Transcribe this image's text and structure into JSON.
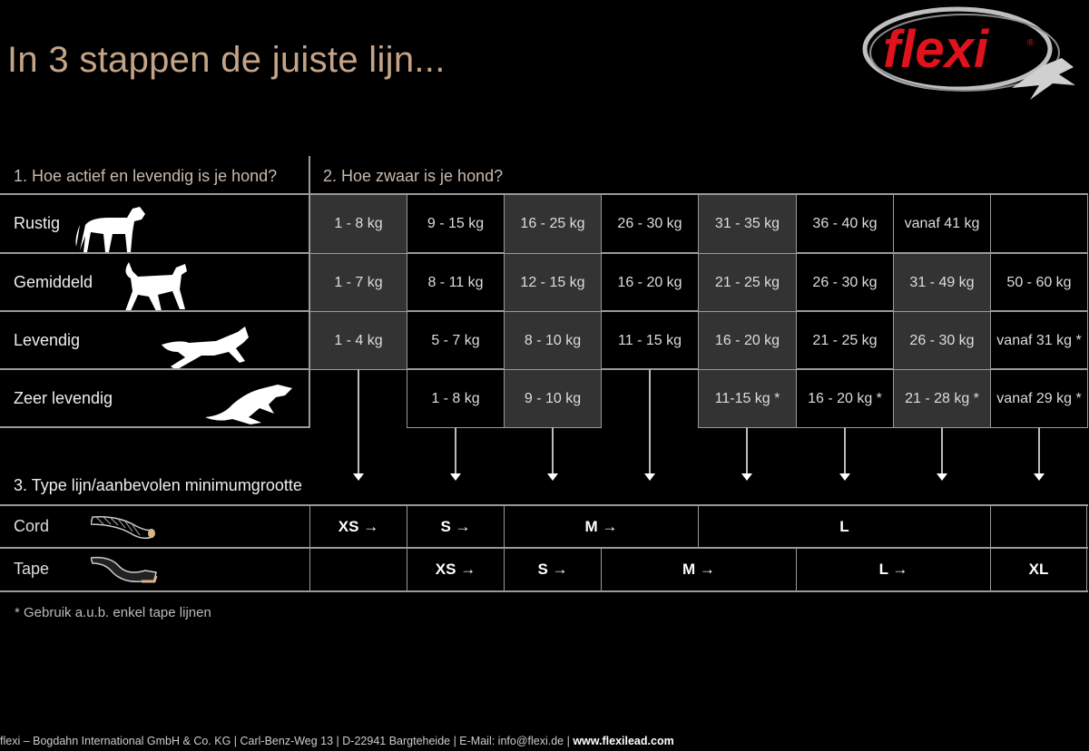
{
  "title": "In 3 stappen de juiste lijn...",
  "logo": {
    "text": "flexi",
    "registered": "®",
    "colors": {
      "brand_red": "#e0121b",
      "ring": "#c8c8c8"
    }
  },
  "step1": "1. Hoe actief en levendig is je hond?",
  "step2": "2. Hoe zwaar is je hond?",
  "step3": "3. Type lijn/aanbevolen minimumgrootte",
  "activity_rows": [
    {
      "label": "Rustig",
      "icon": "standing-dog-icon"
    },
    {
      "label": "Gemiddeld",
      "icon": "walking-dog-icon"
    },
    {
      "label": "Levendig",
      "icon": "running-dog-icon"
    },
    {
      "label": "Zeer levendig",
      "icon": "sprinting-dog-icon"
    }
  ],
  "weight_table": [
    [
      {
        "t": "1 - 8 kg",
        "s": true
      },
      {
        "t": "9 - 15 kg",
        "s": false
      },
      {
        "t": "16 - 25 kg",
        "s": true
      },
      {
        "t": "26 - 30 kg",
        "s": false
      },
      {
        "t": "31 - 35 kg",
        "s": true
      },
      {
        "t": "36 - 40 kg",
        "s": false
      },
      {
        "t": "vanaf 41 kg",
        "s": false
      },
      {
        "t": "",
        "s": false
      }
    ],
    [
      {
        "t": "1 - 7 kg",
        "s": true
      },
      {
        "t": "8 - 11 kg",
        "s": false
      },
      {
        "t": "12 - 15 kg",
        "s": true
      },
      {
        "t": "16 - 20 kg",
        "s": false
      },
      {
        "t": "21 - 25 kg",
        "s": true
      },
      {
        "t": "26 - 30 kg",
        "s": false
      },
      {
        "t": "31 - 49 kg",
        "s": true
      },
      {
        "t": "50 - 60 kg",
        "s": false
      }
    ],
    [
      {
        "t": "1 - 4 kg",
        "s": true
      },
      {
        "t": "5 - 7 kg",
        "s": false
      },
      {
        "t": "8 - 10 kg",
        "s": true
      },
      {
        "t": "11 - 15 kg",
        "s": false
      },
      {
        "t": "16 - 20 kg",
        "s": true
      },
      {
        "t": "21 - 25 kg",
        "s": false
      },
      {
        "t": "26 - 30 kg",
        "s": true
      },
      {
        "t": "vanaf 31 kg *",
        "s": false
      }
    ],
    [
      null,
      {
        "t": "1 - 8 kg",
        "s": false
      },
      {
        "t": "9 - 10 kg",
        "s": true
      },
      null,
      {
        "t": "11-15 kg *",
        "s": true
      },
      {
        "t": "16 - 20 kg *",
        "s": false
      },
      {
        "t": "21 - 28 kg *",
        "s": true
      },
      {
        "t": "vanaf 29 kg *",
        "s": false
      }
    ]
  ],
  "line_types": [
    {
      "label": "Cord",
      "icon": "cord-icon",
      "sizes": [
        {
          "t": "XS →",
          "span": 1
        },
        {
          "t": "S →",
          "span": 1
        },
        {
          "t": "M →",
          "span": 2
        },
        {
          "t": "L",
          "span": 3
        },
        {
          "t": "",
          "span": 1
        }
      ]
    },
    {
      "label": "Tape",
      "icon": "tape-icon",
      "sizes": [
        {
          "t": "",
          "span": 1
        },
        {
          "t": "XS →",
          "span": 1
        },
        {
          "t": "S →",
          "span": 1
        },
        {
          "t": "M →",
          "span": 2
        },
        {
          "t": "L →",
          "span": 2
        },
        {
          "t": "XL",
          "span": 1
        }
      ]
    }
  ],
  "footnote": "* Gebruik a.u.b. enkel tape lijnen",
  "footer": {
    "text": "flexi – Bogdahn International GmbH & Co. KG | Carl-Benz-Weg 13 | D-22941 Bargteheide | E-Mail: info@flexi.de | ",
    "url": "www.flexilead.com"
  },
  "colors": {
    "title": "#c4a487",
    "shaded_cell": "#333333",
    "grid": "#9a9a9a"
  }
}
